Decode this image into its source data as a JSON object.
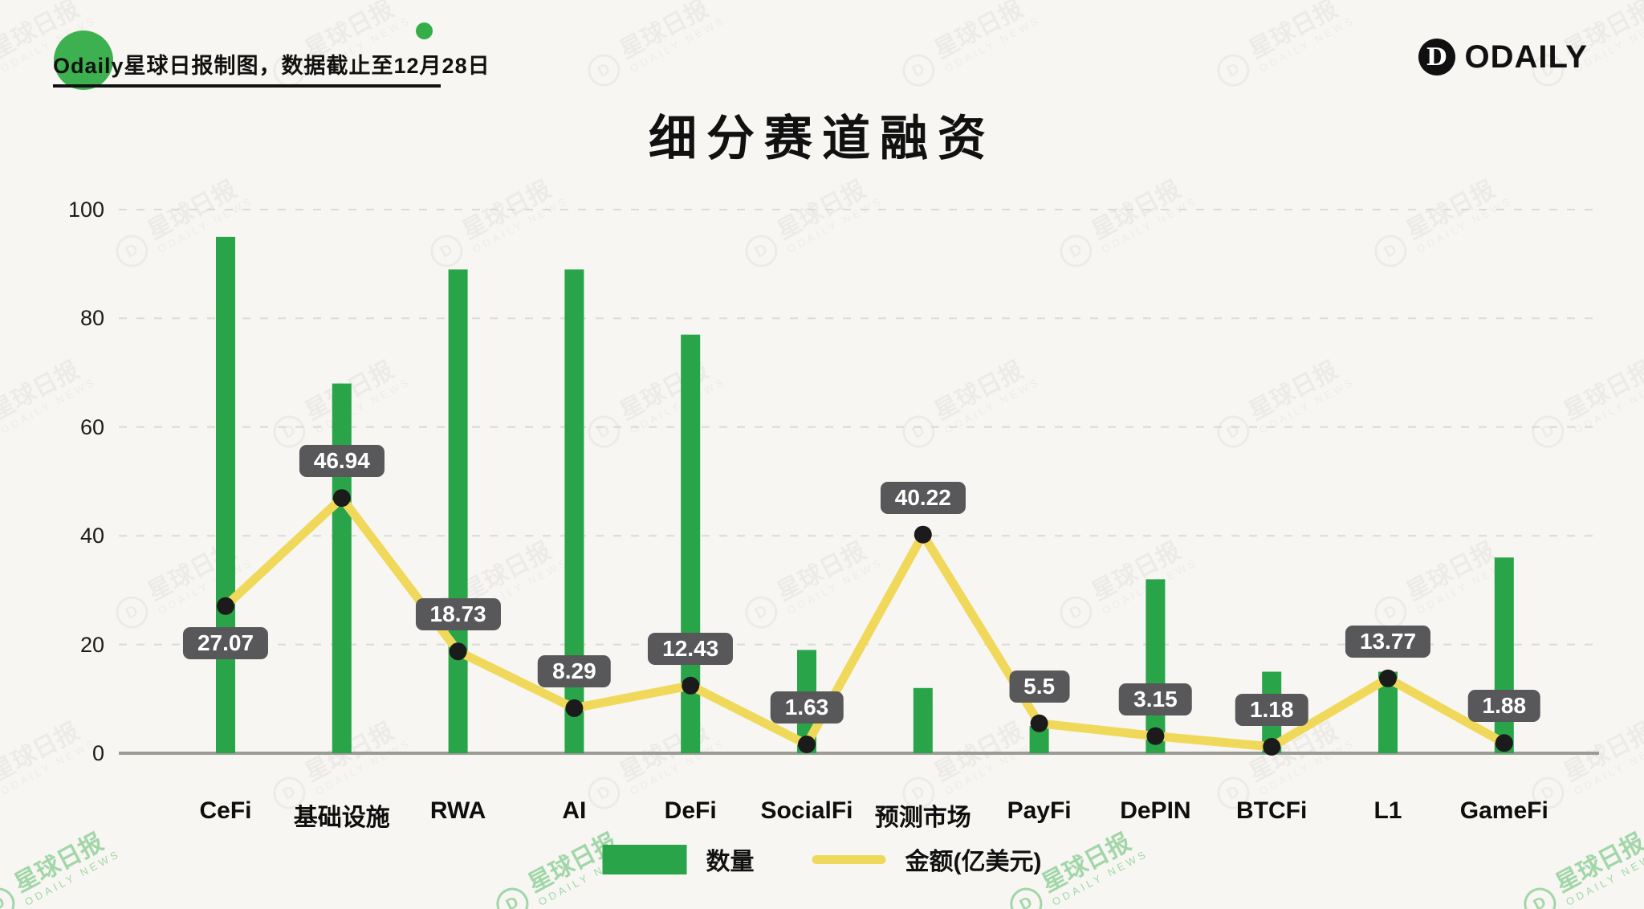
{
  "header": {
    "note": "Odaily星球日报制图，数据截止至12月28日",
    "logo_mark": "D",
    "logo_text": "ODAILY"
  },
  "title": "细分赛道融资",
  "watermark": {
    "line1": "星球日报",
    "line2": "ODAILY NEWS",
    "logo_mark": "D"
  },
  "legend": {
    "bars": "数量",
    "line": "金额(亿美元)"
  },
  "colors": {
    "bar": "#29a449",
    "line": "#f0d95a",
    "point": "#1b1b1b",
    "badge_bg": "#58585a",
    "badge_text": "#ffffff",
    "accent_green": "#3db14f",
    "background": "#f7f6f2"
  },
  "chart_data": {
    "type": "bar",
    "subtype": "bar+line combo",
    "title": "细分赛道融资",
    "categories": [
      "CeFi",
      "基础设施",
      "RWA",
      "AI",
      "DeFi",
      "SocialFi",
      "预测市场",
      "PayFi",
      "DePIN",
      "BTCFi",
      "L1",
      "GameFi"
    ],
    "series": [
      {
        "name": "数量",
        "type": "bar",
        "values": [
          95,
          68,
          89,
          89,
          77,
          19,
          12,
          5,
          32,
          15,
          15,
          36
        ]
      },
      {
        "name": "金额(亿美元)",
        "type": "line",
        "values": [
          27.07,
          46.94,
          18.73,
          8.29,
          12.43,
          1.63,
          40.22,
          5.5,
          3.15,
          1.18,
          13.77,
          1.88
        ],
        "labels": [
          "27.07",
          "46.94",
          "18.73",
          "8.29",
          "12.43",
          "1.63",
          "40.22",
          "5.5",
          "3.15",
          "1.18",
          "13.77",
          "1.88"
        ],
        "label_side": [
          "below",
          "above",
          "above",
          "above",
          "above",
          "above",
          "above",
          "above",
          "above",
          "above",
          "above",
          "above"
        ]
      }
    ],
    "ylim": [
      0,
      100
    ],
    "yticks": [
      0,
      20,
      40,
      60,
      80,
      100
    ],
    "grid": "horizontal dashed",
    "legend_position": "bottom center"
  }
}
